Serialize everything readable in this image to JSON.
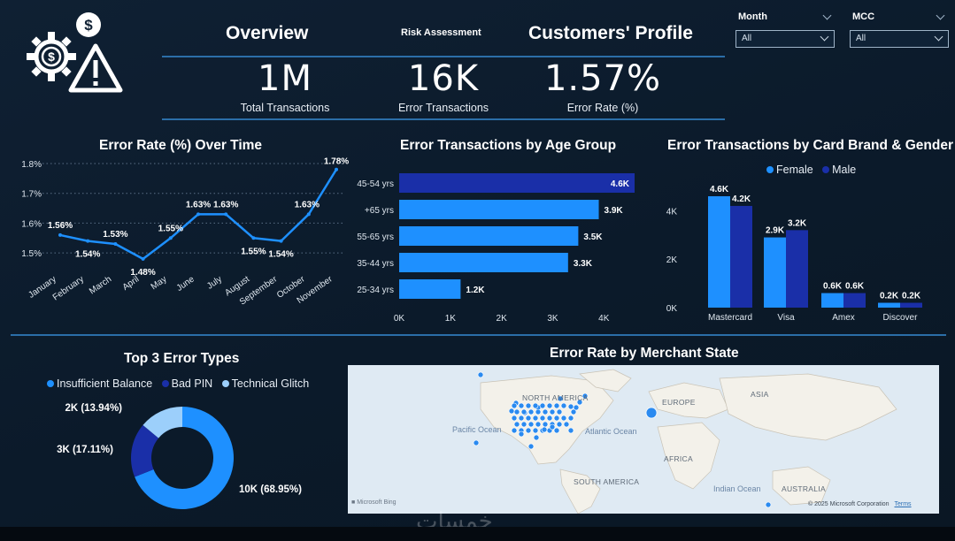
{
  "header": {
    "tabs": [
      {
        "label": "Overview"
      },
      {
        "label": "Risk Assessment"
      },
      {
        "label": "Customers' Profile"
      }
    ]
  },
  "kpis": [
    {
      "value": "1M",
      "label": "Total Transactions"
    },
    {
      "value": "16K",
      "label": "Error Transactions"
    },
    {
      "value": "1.57%",
      "label": "Error Rate (%)"
    }
  ],
  "slicers": [
    {
      "label": "Month",
      "value": "All"
    },
    {
      "label": "MCC",
      "value": "All"
    }
  ],
  "colors": {
    "light_blue": "#1e90ff",
    "dark_blue": "#1a2fa8",
    "pale_blue": "#9ccffb",
    "accent_line": "#2b6ea8"
  },
  "chart_data": [
    {
      "type": "line",
      "title": "Error Rate (%) Over Time",
      "categories": [
        "January",
        "February",
        "March",
        "April",
        "May",
        "June",
        "July",
        "August",
        "September",
        "October",
        "November"
      ],
      "values": [
        1.56,
        1.54,
        1.53,
        1.48,
        1.55,
        1.63,
        1.63,
        1.55,
        1.54,
        1.63,
        1.78
      ],
      "data_labels": [
        "1.56%",
        "1.54%",
        "1.53%",
        "1.48%",
        "1.55%",
        "1.63%",
        "1.63%",
        "1.55%",
        "1.54%",
        "1.63%",
        "1.78%"
      ],
      "yticks": [
        "1.8%",
        "1.7%",
        "1.6%",
        "1.5%"
      ],
      "ytick_values": [
        1.8,
        1.7,
        1.6,
        1.5
      ],
      "ylim": [
        1.45,
        1.8
      ],
      "grid": true
    },
    {
      "type": "bar",
      "orientation": "horizontal",
      "title": "Error Transactions by Age Group",
      "categories": [
        "45-54 yrs",
        "+65 yrs",
        "55-65 yrs",
        "35-44 yrs",
        "25-34 yrs"
      ],
      "values": [
        4.6,
        3.9,
        3.5,
        3.3,
        1.2
      ],
      "data_labels": [
        "4.6K",
        "3.9K",
        "3.5K",
        "3.3K",
        "1.2K"
      ],
      "xticks": [
        "0K",
        "1K",
        "2K",
        "3K",
        "4K"
      ],
      "xtick_values": [
        0,
        1,
        2,
        3,
        4
      ],
      "xlim": [
        0,
        4.6
      ]
    },
    {
      "type": "bar",
      "title": "Error Transactions by Card Brand & Gender",
      "categories": [
        "Mastercard",
        "Visa",
        "Amex",
        "Discover"
      ],
      "series": [
        {
          "name": "Female",
          "values": [
            4.6,
            2.9,
            0.6,
            0.2
          ],
          "data_labels": [
            "4.6K",
            "2.9K",
            "0.6K",
            "0.2K"
          ]
        },
        {
          "name": "Male",
          "values": [
            4.2,
            3.2,
            0.6,
            0.2
          ],
          "data_labels": [
            "4.2K",
            "3.2K",
            "0.6K",
            "0.2K"
          ]
        }
      ],
      "yticks": [
        "4K",
        "2K",
        "0K"
      ],
      "ytick_values": [
        4,
        2,
        0
      ],
      "ylim": [
        0,
        4.6
      ],
      "legend": "top-center"
    },
    {
      "type": "pie",
      "style": "donut",
      "title": "Top 3 Error Types",
      "categories": [
        "Insufficient Balance",
        "Bad PIN",
        "Technical Glitch"
      ],
      "values": [
        68.95,
        17.11,
        13.94
      ],
      "data_labels": [
        "10K (68.95%)",
        "3K (17.11%)",
        "2K (13.94%)"
      ],
      "legend": "top"
    },
    {
      "type": "scatter",
      "chart_kind": "map",
      "title": "Error Rate by Merchant State",
      "map_labels": [
        "NORTH AMERICA",
        "EUROPE",
        "ASIA",
        "AFRICA",
        "SOUTH AMERICA",
        "AUSTRALIA"
      ],
      "ocean_labels": [
        "Pacific Ocean",
        "Atlantic Ocean",
        "Indian Ocean"
      ],
      "attribution": "© 2025 Microsoft Corporation",
      "terms": "Terms",
      "provider": "Microsoft Bing"
    }
  ],
  "watermark": "خمسات"
}
